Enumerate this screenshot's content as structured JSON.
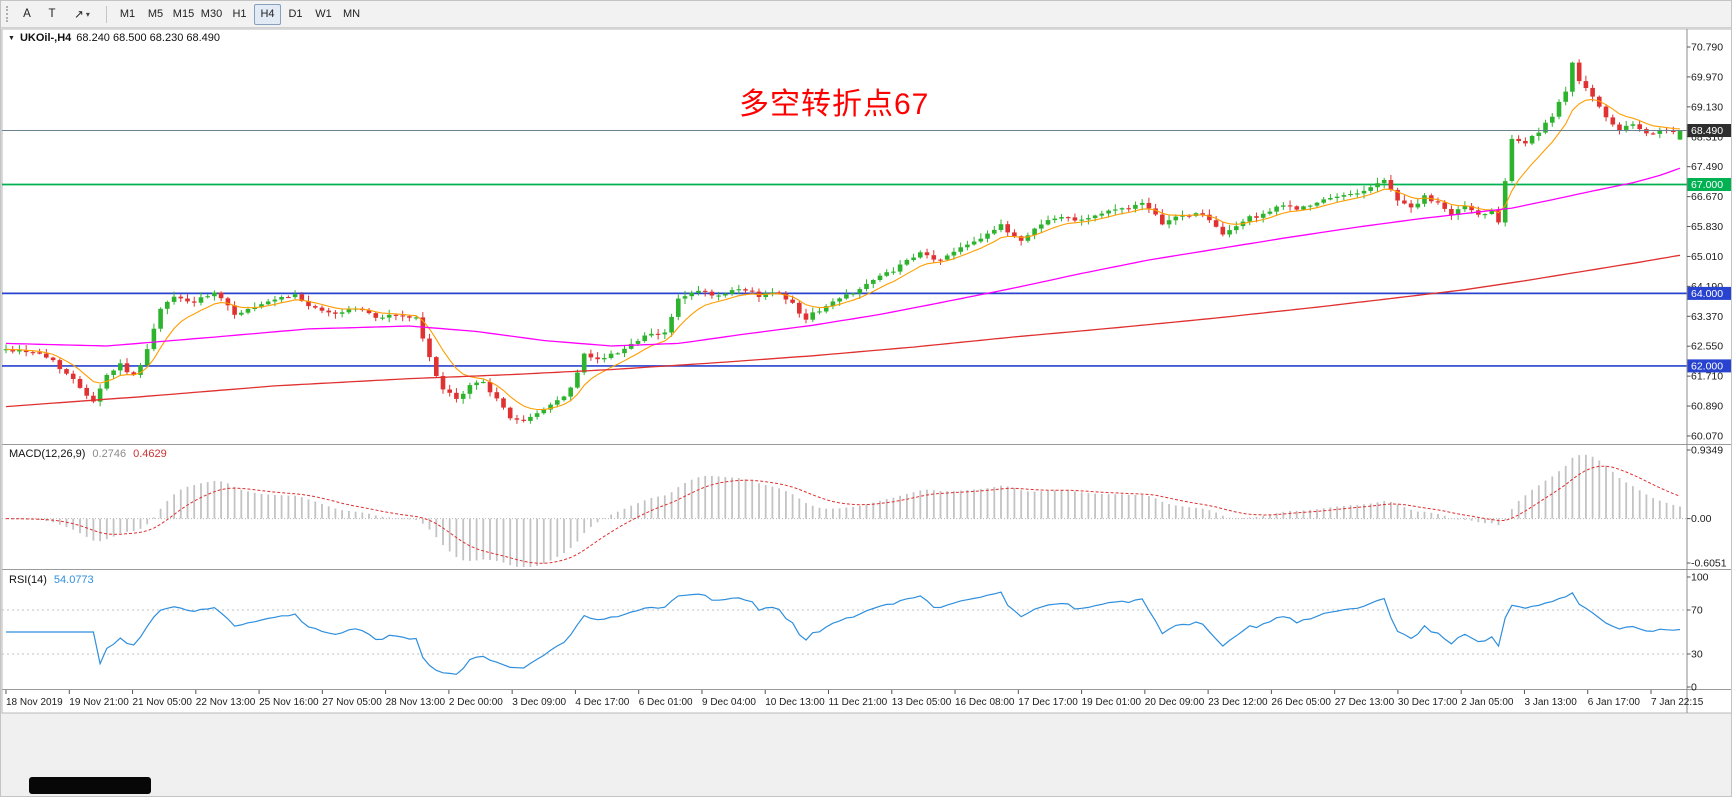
{
  "toolbar": {
    "arrow_tool": "A",
    "text_tool": "T",
    "shapes_tool": "↗",
    "caret": "▾",
    "timeframes": [
      "M1",
      "M5",
      "M15",
      "M30",
      "H1",
      "H4",
      "D1",
      "W1",
      "MN"
    ],
    "active_timeframe": "H4"
  },
  "chart": {
    "collapse_icon": "▼",
    "symbol_title": "UKOil-,H4",
    "ohlc_values": "68.240 68.500 68.230 68.490",
    "annotation": "多空转折点67",
    "current_price": 68.49,
    "current_price_label": "68.490",
    "price_axis_labels": [
      "70.790",
      "69.970",
      "69.130",
      "68.310",
      "67.490",
      "66.670",
      "65.830",
      "65.010",
      "64.190",
      "63.370",
      "62.550",
      "61.710",
      "60.890",
      "60.070"
    ],
    "hlines": [
      {
        "price": 67.0,
        "label": "67.000",
        "color": "#00b152"
      },
      {
        "price": 64.0,
        "label": "64.000",
        "color": "#2743cf"
      },
      {
        "price": 62.0,
        "label": "62.000",
        "color": "#2743cf"
      }
    ],
    "time_axis_labels": [
      "18 Nov 2019",
      "19 Nov 21:00",
      "21 Nov 05:00",
      "22 Nov 13:00",
      "25 Nov 16:00",
      "27 Nov 05:00",
      "28 Nov 13:00",
      "2 Dec 00:00",
      "3 Dec 09:00",
      "4 Dec 17:00",
      "6 Dec 01:00",
      "9 Dec 04:00",
      "10 Dec 13:00",
      "11 Dec 21:00",
      "13 Dec 05:00",
      "16 Dec 08:00",
      "17 Dec 17:00",
      "19 Dec 01:00",
      "20 Dec 09:00",
      "23 Dec 12:00",
      "26 Dec 05:00",
      "27 Dec 13:00",
      "30 Dec 17:00",
      "2 Jan 05:00",
      "3 Jan 13:00",
      "6 Jan 17:00",
      "7 Jan 22:15"
    ]
  },
  "macd": {
    "name": "MACD(12,26,9)",
    "value_main": "0.2746",
    "value_signal": "0.4629",
    "axis_labels": [
      "0.9349",
      "0.00",
      "-0.6051"
    ],
    "axis_max": 0.9349,
    "axis_min": -0.6051
  },
  "rsi": {
    "name": "RSI(14)",
    "value": "54.0773",
    "axis_labels": [
      "100",
      "70",
      "30",
      "0"
    ],
    "levels": [
      70,
      30
    ]
  },
  "chart_data": {
    "type": "candlestick",
    "symbol": "UKOil-",
    "timeframe": "H4",
    "bars": 250,
    "price_max": 70.79,
    "price_min": 60.07,
    "last_candle": [
      68.24,
      68.5,
      68.23,
      68.49
    ],
    "close_waypoints": [
      [
        0,
        62.45
      ],
      [
        4,
        62.4
      ],
      [
        7,
        62.15
      ],
      [
        10,
        61.6
      ],
      [
        13,
        61.05
      ],
      [
        15,
        61.75
      ],
      [
        17,
        62.05
      ],
      [
        19,
        61.7
      ],
      [
        21,
        62.45
      ],
      [
        23,
        63.55
      ],
      [
        25,
        63.9
      ],
      [
        28,
        63.75
      ],
      [
        31,
        64.0
      ],
      [
        34,
        63.45
      ],
      [
        37,
        63.6
      ],
      [
        40,
        63.8
      ],
      [
        43,
        63.95
      ],
      [
        46,
        63.55
      ],
      [
        49,
        63.45
      ],
      [
        52,
        63.6
      ],
      [
        55,
        63.35
      ],
      [
        58,
        63.4
      ],
      [
        61,
        63.3
      ],
      [
        63,
        62.2
      ],
      [
        65,
        61.35
      ],
      [
        67,
        61.05
      ],
      [
        69,
        61.45
      ],
      [
        71,
        61.6
      ],
      [
        73,
        61.05
      ],
      [
        75,
        60.6
      ],
      [
        77,
        60.45
      ],
      [
        79,
        60.7
      ],
      [
        82,
        61.05
      ],
      [
        84,
        61.35
      ],
      [
        86,
        62.3
      ],
      [
        89,
        62.2
      ],
      [
        92,
        62.5
      ],
      [
        95,
        62.8
      ],
      [
        98,
        62.9
      ],
      [
        100,
        63.85
      ],
      [
        103,
        64.05
      ],
      [
        106,
        63.9
      ],
      [
        109,
        64.1
      ],
      [
        112,
        63.95
      ],
      [
        115,
        64.05
      ],
      [
        117,
        63.7
      ],
      [
        119,
        63.3
      ],
      [
        121,
        63.55
      ],
      [
        124,
        63.85
      ],
      [
        127,
        64.15
      ],
      [
        130,
        64.45
      ],
      [
        133,
        64.75
      ],
      [
        136,
        65.1
      ],
      [
        139,
        64.9
      ],
      [
        142,
        65.3
      ],
      [
        145,
        65.55
      ],
      [
        148,
        65.85
      ],
      [
        151,
        65.45
      ],
      [
        154,
        65.95
      ],
      [
        157,
        66.1
      ],
      [
        160,
        66.05
      ],
      [
        163,
        66.2
      ],
      [
        166,
        66.35
      ],
      [
        169,
        66.45
      ],
      [
        172,
        65.95
      ],
      [
        175,
        66.15
      ],
      [
        178,
        66.2
      ],
      [
        181,
        65.6
      ],
      [
        184,
        66.0
      ],
      [
        187,
        66.2
      ],
      [
        190,
        66.4
      ],
      [
        193,
        66.35
      ],
      [
        196,
        66.55
      ],
      [
        199,
        66.7
      ],
      [
        202,
        66.85
      ],
      [
        205,
        67.1
      ],
      [
        207,
        66.6
      ],
      [
        209,
        66.35
      ],
      [
        211,
        66.65
      ],
      [
        213,
        66.45
      ],
      [
        215,
        66.2
      ],
      [
        217,
        66.4
      ],
      [
        219,
        66.15
      ],
      [
        221,
        66.3
      ],
      [
        222,
        66.0
      ],
      [
        224,
        68.3
      ],
      [
        226,
        68.15
      ],
      [
        228,
        68.45
      ],
      [
        230,
        68.85
      ],
      [
        232,
        69.6
      ],
      [
        233,
        70.4
      ],
      [
        234,
        69.9
      ],
      [
        236,
        69.4
      ],
      [
        238,
        68.8
      ],
      [
        240,
        68.5
      ],
      [
        242,
        68.65
      ],
      [
        244,
        68.35
      ],
      [
        246,
        68.55
      ],
      [
        248,
        68.4
      ],
      [
        249,
        68.49
      ]
    ],
    "ma_mid_waypoints": [
      [
        0,
        62.62
      ],
      [
        15,
        62.55
      ],
      [
        30,
        62.78
      ],
      [
        45,
        63.02
      ],
      [
        60,
        63.1
      ],
      [
        70,
        62.95
      ],
      [
        80,
        62.7
      ],
      [
        90,
        62.55
      ],
      [
        100,
        62.62
      ],
      [
        110,
        62.88
      ],
      [
        120,
        63.12
      ],
      [
        130,
        63.42
      ],
      [
        140,
        63.78
      ],
      [
        150,
        64.15
      ],
      [
        160,
        64.55
      ],
      [
        170,
        64.92
      ],
      [
        180,
        65.22
      ],
      [
        190,
        65.52
      ],
      [
        200,
        65.8
      ],
      [
        210,
        66.05
      ],
      [
        217,
        66.2
      ],
      [
        224,
        66.35
      ],
      [
        230,
        66.58
      ],
      [
        236,
        66.82
      ],
      [
        242,
        67.05
      ],
      [
        246,
        67.25
      ],
      [
        249,
        67.45
      ]
    ],
    "ma_slow_waypoints": [
      [
        0,
        60.88
      ],
      [
        20,
        61.15
      ],
      [
        40,
        61.45
      ],
      [
        60,
        61.65
      ],
      [
        75,
        61.76
      ],
      [
        90,
        61.9
      ],
      [
        105,
        62.08
      ],
      [
        120,
        62.28
      ],
      [
        135,
        62.52
      ],
      [
        150,
        62.8
      ],
      [
        165,
        63.05
      ],
      [
        180,
        63.32
      ],
      [
        195,
        63.62
      ],
      [
        207,
        63.88
      ],
      [
        217,
        64.1
      ],
      [
        226,
        64.35
      ],
      [
        235,
        64.62
      ],
      [
        243,
        64.86
      ],
      [
        249,
        65.05
      ]
    ],
    "colors": {
      "up": "#2db32d",
      "down": "#e03232",
      "ma_fast": "#ff9d00",
      "ma_mid": "#ff00ff",
      "ma_slow": "#e03030",
      "macd_hist": "#c3c3c3",
      "macd_signal": "#e03030",
      "rsi": "#2f8fdd",
      "current": "#6b8291"
    }
  }
}
